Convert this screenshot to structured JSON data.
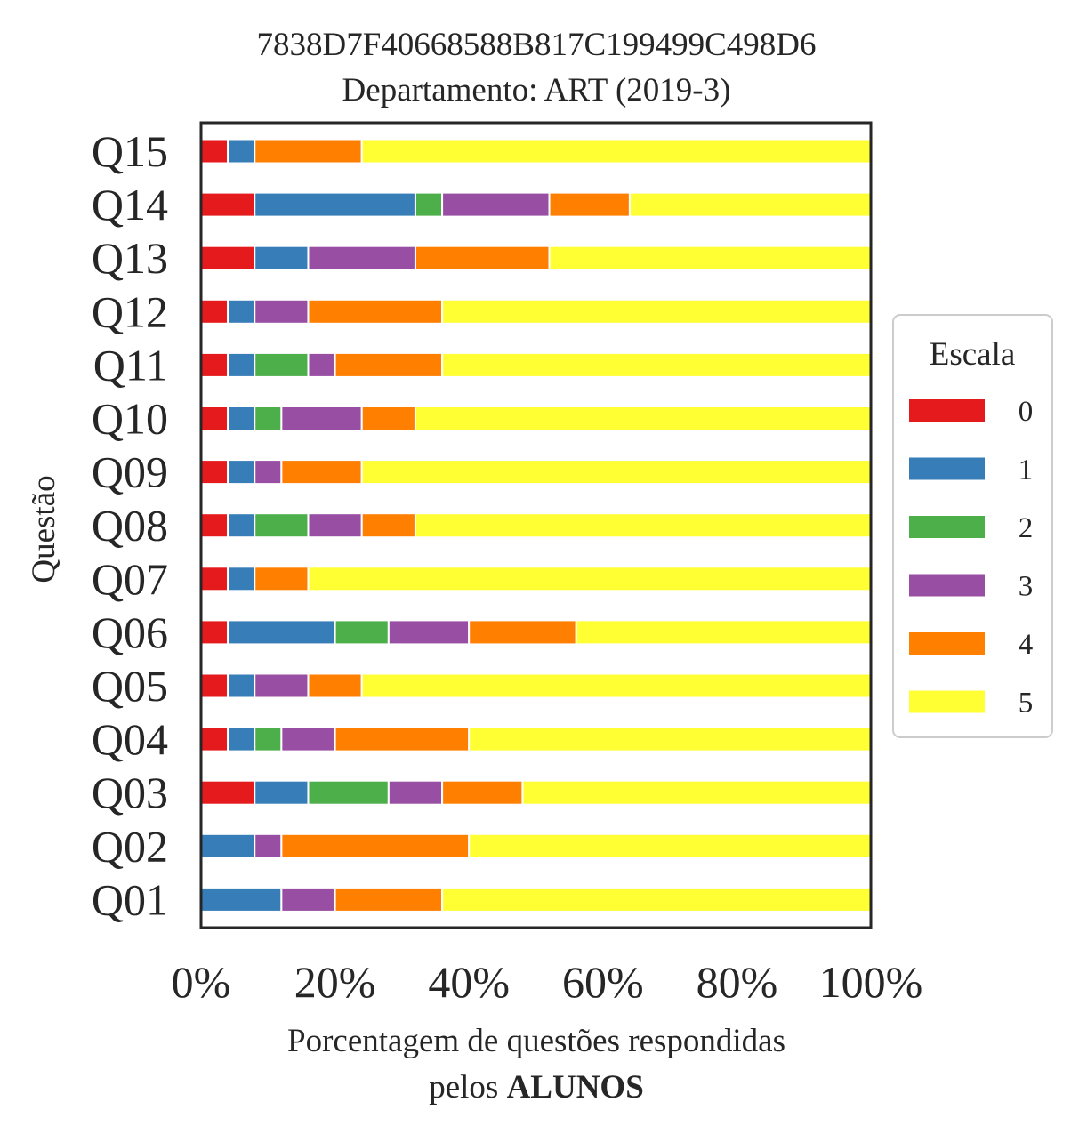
{
  "chart_data": {
    "type": "bar",
    "orientation": "horizontal",
    "stacked": true,
    "title": "7838D7F40668588B817C199499C498D6",
    "subtitle": "Departamento: ART (2019-3)",
    "ylabel": "Questão",
    "xlabel_line1": "Porcentagem de questões respondidas",
    "xlabel_line2_prefix": "pelos ",
    "xlabel_line2_bold": "ALUNOS",
    "xlim": [
      0,
      100
    ],
    "x_ticks": [
      "0%",
      "20%",
      "40%",
      "60%",
      "80%",
      "100%"
    ],
    "grid": false,
    "legend_title": "Escala",
    "legend_position": "right",
    "categories": [
      "Q15",
      "Q14",
      "Q13",
      "Q12",
      "Q11",
      "Q10",
      "Q09",
      "Q08",
      "Q07",
      "Q06",
      "Q05",
      "Q04",
      "Q03",
      "Q02",
      "Q01"
    ],
    "series": [
      {
        "name": "0",
        "color": "#e41a1c",
        "values": [
          4,
          8,
          8,
          4,
          4,
          4,
          4,
          4,
          4,
          4,
          4,
          4,
          8,
          0,
          0
        ]
      },
      {
        "name": "1",
        "color": "#377eb8",
        "values": [
          4,
          24,
          8,
          4,
          4,
          4,
          4,
          4,
          4,
          16,
          4,
          4,
          8,
          8,
          12
        ]
      },
      {
        "name": "2",
        "color": "#4daf4a",
        "values": [
          0,
          4,
          0,
          0,
          8,
          4,
          0,
          8,
          0,
          8,
          0,
          4,
          12,
          0,
          0
        ]
      },
      {
        "name": "3",
        "color": "#984ea3",
        "values": [
          0,
          16,
          16,
          8,
          4,
          12,
          4,
          8,
          0,
          12,
          8,
          8,
          8,
          4,
          8
        ]
      },
      {
        "name": "4",
        "color": "#ff7f00",
        "values": [
          16,
          12,
          20,
          20,
          16,
          8,
          12,
          8,
          8,
          16,
          8,
          20,
          12,
          28,
          16
        ]
      },
      {
        "name": "5",
        "color": "#ffff33",
        "values": [
          76,
          36,
          48,
          64,
          64,
          68,
          76,
          68,
          84,
          44,
          76,
          60,
          52,
          60,
          64
        ]
      }
    ]
  }
}
